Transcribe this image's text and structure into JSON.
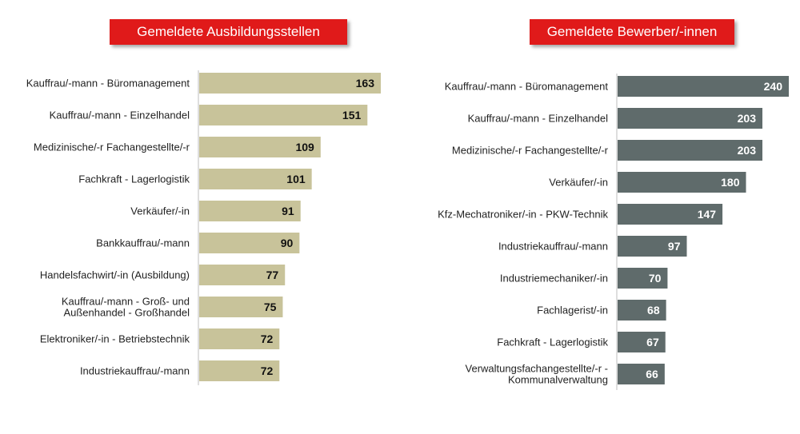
{
  "charts_titles": {
    "left": "Gemeldete Ausbildungsstellen",
    "right": "Gemeldete Bewerber/-innen"
  },
  "colors": {
    "title_bg": "#e01a1a",
    "left_bar": "#c8c39a",
    "right_bar": "#5f6b6b",
    "left_value_text": "#111111",
    "right_value_text": "#ffffff"
  },
  "chart_data": [
    {
      "type": "bar",
      "orientation": "horizontal",
      "title": "Gemeldete Ausbildungsstellen",
      "categories": [
        [
          "Kauffrau/-mann - Büromanagement"
        ],
        [
          "Kauffrau/-mann - Einzelhandel"
        ],
        [
          "Medizinische/-r Fachangestellte/-r"
        ],
        [
          "Fachkraft - Lagerlogistik"
        ],
        [
          "Verkäufer/-in"
        ],
        [
          "Bankkauffrau/-mann"
        ],
        [
          "Handelsfachwirt/-in (Ausbildung)"
        ],
        [
          "Kauffrau/-mann - Groß- und",
          "Außenhandel - Großhandel"
        ],
        [
          "Elektroniker/-in - Betriebstechnik"
        ],
        [
          "Industriekauffrau/-mann"
        ]
      ],
      "values": [
        163,
        151,
        109,
        101,
        91,
        90,
        77,
        75,
        72,
        72
      ],
      "xlim": [
        0,
        163
      ]
    },
    {
      "type": "bar",
      "orientation": "horizontal",
      "title": "Gemeldete Bewerber/-innen",
      "categories": [
        [
          "Kauffrau/-mann - Büromanagement"
        ],
        [
          "Kauffrau/-mann - Einzelhandel"
        ],
        [
          "Medizinische/-r Fachangestellte/-r"
        ],
        [
          "Verkäufer/-in"
        ],
        [
          "Kfz-Mechatroniker/-in - PKW-Technik"
        ],
        [
          "Industriekauffrau/-mann"
        ],
        [
          "Industriemechaniker/-in"
        ],
        [
          "Fachlagerist/-in"
        ],
        [
          "Fachkraft - Lagerlogistik"
        ],
        [
          "Verwaltungsfachangestellte/-r -",
          "Kommunalverwaltung"
        ]
      ],
      "values": [
        240,
        203,
        203,
        180,
        147,
        97,
        70,
        68,
        67,
        66
      ],
      "xlim": [
        0,
        240
      ]
    }
  ]
}
